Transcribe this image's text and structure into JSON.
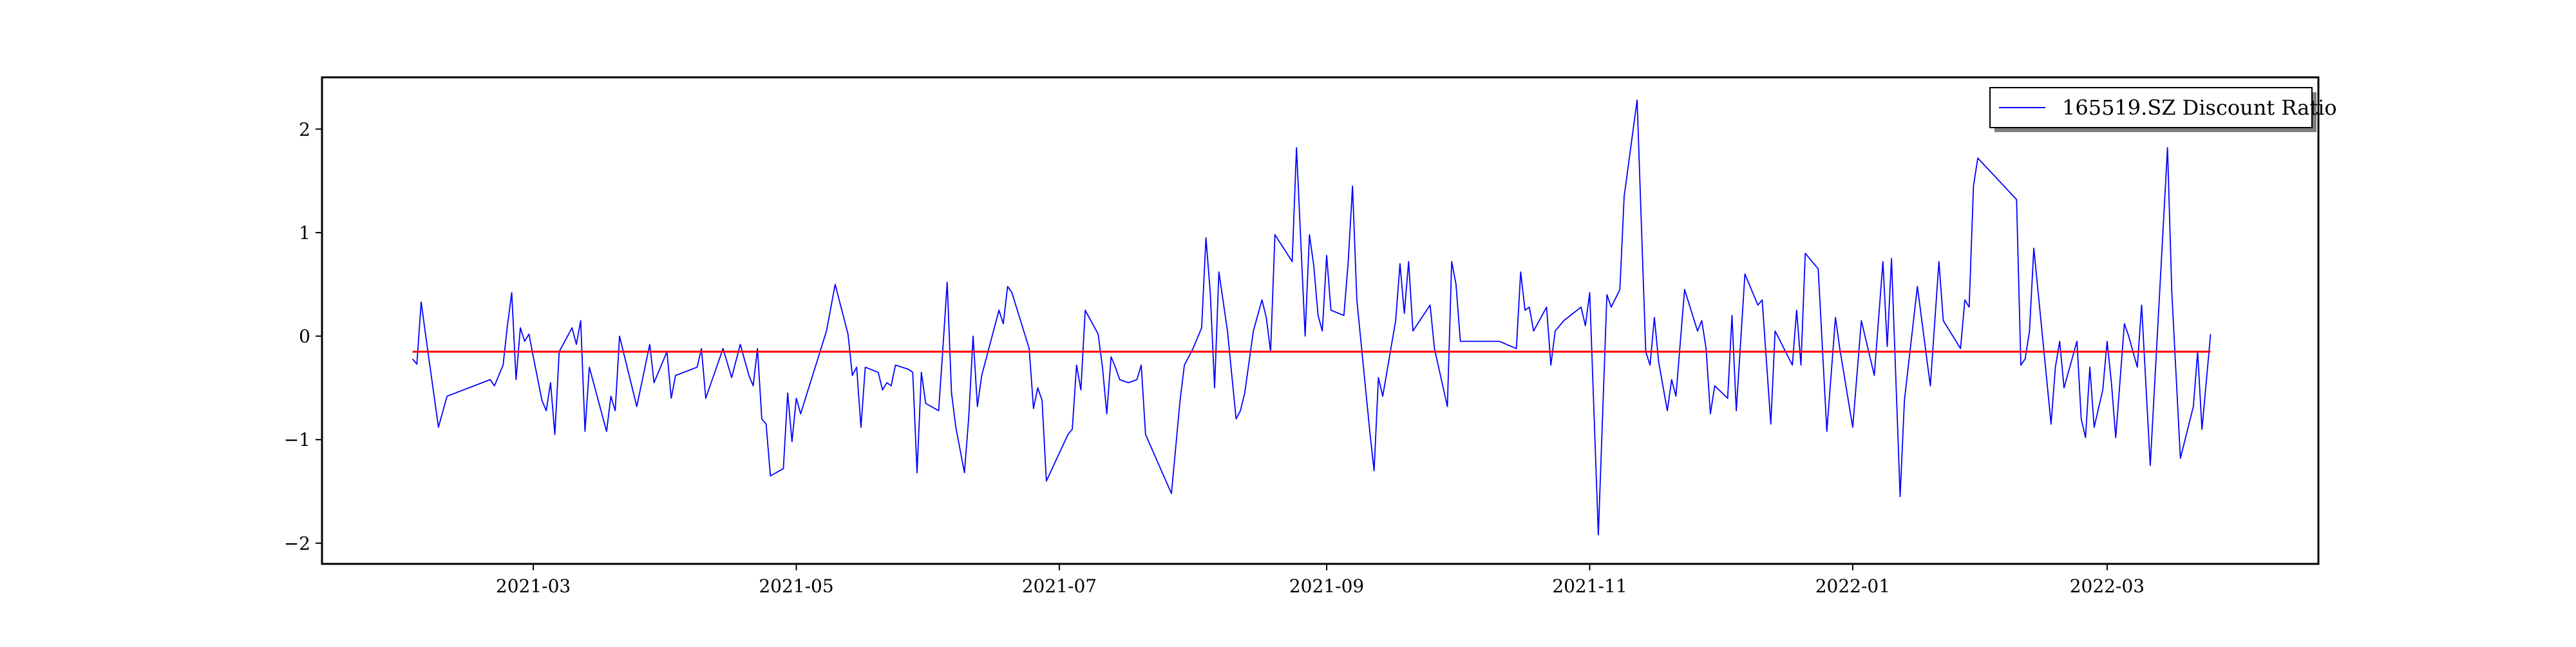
{
  "chart_data": {
    "type": "line",
    "title": "",
    "xlabel": "",
    "ylabel": "",
    "x_ticks": [
      "2021-03",
      "2021-05",
      "2021-07",
      "2021-09",
      "2021-11",
      "2022-01",
      "2022-03"
    ],
    "y_ticks": [
      "−2",
      "−1",
      "0",
      "1",
      "2"
    ],
    "xlim": [
      "2021-01-11",
      "2022-04-19"
    ],
    "ylim": [
      -2.2,
      2.5
    ],
    "grid": false,
    "legend": {
      "position": "top-right"
    },
    "reference_line": {
      "y": -0.15,
      "color": "#ff0000"
    },
    "series": [
      {
        "name": "165519.SZ Discount Ratio",
        "color": "#0000ff",
        "points": [
          [
            "2021-02-01",
            -0.22
          ],
          [
            "2021-02-02",
            -0.27
          ],
          [
            "2021-02-03",
            0.33
          ],
          [
            "2021-02-04",
            0.02
          ],
          [
            "2021-02-07",
            -0.88
          ],
          [
            "2021-02-09",
            -0.58
          ],
          [
            "2021-02-19",
            -0.42
          ],
          [
            "2021-02-20",
            -0.48
          ],
          [
            "2021-02-22",
            -0.28
          ],
          [
            "2021-02-23",
            0.1
          ],
          [
            "2021-02-24",
            0.42
          ],
          [
            "2021-02-25",
            -0.42
          ],
          [
            "2021-02-26",
            0.08
          ],
          [
            "2021-02-27",
            -0.05
          ],
          [
            "2021-02-28",
            0.02
          ],
          [
            "2021-03-01",
            -0.2
          ],
          [
            "2021-03-03",
            -0.62
          ],
          [
            "2021-03-04",
            -0.72
          ],
          [
            "2021-03-05",
            -0.45
          ],
          [
            "2021-03-06",
            -0.95
          ],
          [
            "2021-03-07",
            -0.15
          ],
          [
            "2021-03-10",
            0.08
          ],
          [
            "2021-03-11",
            -0.08
          ],
          [
            "2021-03-12",
            0.15
          ],
          [
            "2021-03-13",
            -0.92
          ],
          [
            "2021-03-14",
            -0.3
          ],
          [
            "2021-03-18",
            -0.92
          ],
          [
            "2021-03-19",
            -0.58
          ],
          [
            "2021-03-20",
            -0.72
          ],
          [
            "2021-03-21",
            0.0
          ],
          [
            "2021-03-25",
            -0.68
          ],
          [
            "2021-03-27",
            -0.28
          ],
          [
            "2021-03-28",
            -0.08
          ],
          [
            "2021-03-29",
            -0.45
          ],
          [
            "2021-04-01",
            -0.15
          ],
          [
            "2021-04-02",
            -0.6
          ],
          [
            "2021-04-03",
            -0.38
          ],
          [
            "2021-04-08",
            -0.3
          ],
          [
            "2021-04-09",
            -0.12
          ],
          [
            "2021-04-10",
            -0.6
          ],
          [
            "2021-04-14",
            -0.12
          ],
          [
            "2021-04-16",
            -0.4
          ],
          [
            "2021-04-18",
            -0.08
          ],
          [
            "2021-04-20",
            -0.38
          ],
          [
            "2021-04-21",
            -0.48
          ],
          [
            "2021-04-22",
            -0.12
          ],
          [
            "2021-04-23",
            -0.8
          ],
          [
            "2021-04-24",
            -0.85
          ],
          [
            "2021-04-25",
            -1.35
          ],
          [
            "2021-04-28",
            -1.28
          ],
          [
            "2021-04-29",
            -0.55
          ],
          [
            "2021-04-30",
            -1.02
          ],
          [
            "2021-05-01",
            -0.6
          ],
          [
            "2021-05-02",
            -0.75
          ],
          [
            "2021-05-08",
            0.05
          ],
          [
            "2021-05-10",
            0.5
          ],
          [
            "2021-05-13",
            0.02
          ],
          [
            "2021-05-14",
            -0.38
          ],
          [
            "2021-05-15",
            -0.3
          ],
          [
            "2021-05-16",
            -0.88
          ],
          [
            "2021-05-17",
            -0.3
          ],
          [
            "2021-05-20",
            -0.35
          ],
          [
            "2021-05-21",
            -0.52
          ],
          [
            "2021-05-22",
            -0.45
          ],
          [
            "2021-05-23",
            -0.48
          ],
          [
            "2021-05-24",
            -0.28
          ],
          [
            "2021-05-27",
            -0.32
          ],
          [
            "2021-05-28",
            -0.35
          ],
          [
            "2021-05-29",
            -1.32
          ],
          [
            "2021-05-30",
            -0.35
          ],
          [
            "2021-05-31",
            -0.65
          ],
          [
            "2021-06-03",
            -0.72
          ],
          [
            "2021-06-04",
            -0.12
          ],
          [
            "2021-06-05",
            0.52
          ],
          [
            "2021-06-06",
            -0.55
          ],
          [
            "2021-06-07",
            -0.88
          ],
          [
            "2021-06-09",
            -1.32
          ],
          [
            "2021-06-10",
            -0.78
          ],
          [
            "2021-06-11",
            0.0
          ],
          [
            "2021-06-12",
            -0.68
          ],
          [
            "2021-06-13",
            -0.38
          ],
          [
            "2021-06-17",
            0.25
          ],
          [
            "2021-06-18",
            0.12
          ],
          [
            "2021-06-19",
            0.48
          ],
          [
            "2021-06-20",
            0.42
          ],
          [
            "2021-06-24",
            -0.12
          ],
          [
            "2021-06-25",
            -0.7
          ],
          [
            "2021-06-26",
            -0.5
          ],
          [
            "2021-06-27",
            -0.62
          ],
          [
            "2021-06-28",
            -1.4
          ],
          [
            "2021-07-03",
            -0.95
          ],
          [
            "2021-07-04",
            -0.9
          ],
          [
            "2021-07-05",
            -0.28
          ],
          [
            "2021-07-06",
            -0.52
          ],
          [
            "2021-07-07",
            0.25
          ],
          [
            "2021-07-10",
            0.02
          ],
          [
            "2021-07-11",
            -0.3
          ],
          [
            "2021-07-12",
            -0.75
          ],
          [
            "2021-07-13",
            -0.2
          ],
          [
            "2021-07-14",
            -0.3
          ],
          [
            "2021-07-15",
            -0.42
          ],
          [
            "2021-07-17",
            -0.45
          ],
          [
            "2021-07-19",
            -0.42
          ],
          [
            "2021-07-20",
            -0.28
          ],
          [
            "2021-07-21",
            -0.95
          ],
          [
            "2021-07-27",
            -1.52
          ],
          [
            "2021-07-29",
            -0.62
          ],
          [
            "2021-07-30",
            -0.28
          ],
          [
            "2021-08-01",
            -0.12
          ],
          [
            "2021-08-03",
            0.08
          ],
          [
            "2021-08-04",
            0.95
          ],
          [
            "2021-08-05",
            0.42
          ],
          [
            "2021-08-06",
            -0.5
          ],
          [
            "2021-08-07",
            0.62
          ],
          [
            "2021-08-09",
            0.05
          ],
          [
            "2021-08-11",
            -0.8
          ],
          [
            "2021-08-12",
            -0.72
          ],
          [
            "2021-08-13",
            -0.55
          ],
          [
            "2021-08-15",
            0.05
          ],
          [
            "2021-08-17",
            0.35
          ],
          [
            "2021-08-18",
            0.18
          ],
          [
            "2021-08-19",
            -0.15
          ],
          [
            "2021-08-20",
            0.98
          ],
          [
            "2021-08-24",
            0.72
          ],
          [
            "2021-08-25",
            1.82
          ],
          [
            "2021-08-27",
            0.0
          ],
          [
            "2021-08-28",
            0.98
          ],
          [
            "2021-08-29",
            0.68
          ],
          [
            "2021-08-30",
            0.2
          ],
          [
            "2021-08-31",
            0.05
          ],
          [
            "2021-09-01",
            0.78
          ],
          [
            "2021-09-02",
            0.25
          ],
          [
            "2021-09-05",
            0.2
          ],
          [
            "2021-09-06",
            0.72
          ],
          [
            "2021-09-07",
            1.45
          ],
          [
            "2021-09-08",
            0.35
          ],
          [
            "2021-09-11",
            -0.92
          ],
          [
            "2021-09-12",
            -1.3
          ],
          [
            "2021-09-13",
            -0.4
          ],
          [
            "2021-09-14",
            -0.58
          ],
          [
            "2021-09-17",
            0.15
          ],
          [
            "2021-09-18",
            0.7
          ],
          [
            "2021-09-19",
            0.22
          ],
          [
            "2021-09-20",
            0.72
          ],
          [
            "2021-09-21",
            0.05
          ],
          [
            "2021-09-25",
            0.3
          ],
          [
            "2021-09-26",
            -0.12
          ],
          [
            "2021-09-29",
            -0.68
          ],
          [
            "2021-09-30",
            0.72
          ],
          [
            "2021-10-01",
            0.5
          ],
          [
            "2021-10-02",
            -0.05
          ],
          [
            "2021-10-11",
            -0.05
          ],
          [
            "2021-10-15",
            -0.12
          ],
          [
            "2021-10-16",
            0.62
          ],
          [
            "2021-10-17",
            0.25
          ],
          [
            "2021-10-18",
            0.28
          ],
          [
            "2021-10-19",
            0.05
          ],
          [
            "2021-10-22",
            0.28
          ],
          [
            "2021-10-23",
            -0.28
          ],
          [
            "2021-10-24",
            0.05
          ],
          [
            "2021-10-26",
            0.15
          ],
          [
            "2021-10-30",
            0.28
          ],
          [
            "2021-10-31",
            0.1
          ],
          [
            "2021-11-01",
            0.42
          ],
          [
            "2021-11-03",
            -1.92
          ],
          [
            "2021-11-05",
            0.4
          ],
          [
            "2021-11-06",
            0.28
          ],
          [
            "2021-11-08",
            0.45
          ],
          [
            "2021-11-09",
            1.35
          ],
          [
            "2021-11-12",
            2.28
          ],
          [
            "2021-11-14",
            -0.15
          ],
          [
            "2021-11-15",
            -0.28
          ],
          [
            "2021-11-16",
            0.18
          ],
          [
            "2021-11-17",
            -0.25
          ],
          [
            "2021-11-19",
            -0.72
          ],
          [
            "2021-11-20",
            -0.42
          ],
          [
            "2021-11-21",
            -0.58
          ],
          [
            "2021-11-23",
            0.45
          ],
          [
            "2021-11-26",
            0.05
          ],
          [
            "2021-11-27",
            0.15
          ],
          [
            "2021-11-28",
            -0.12
          ],
          [
            "2021-11-29",
            -0.75
          ],
          [
            "2021-11-30",
            -0.48
          ],
          [
            "2021-12-03",
            -0.6
          ],
          [
            "2021-12-04",
            0.2
          ],
          [
            "2021-12-05",
            -0.72
          ],
          [
            "2021-12-07",
            0.6
          ],
          [
            "2021-12-10",
            0.3
          ],
          [
            "2021-12-11",
            0.35
          ],
          [
            "2021-12-13",
            -0.85
          ],
          [
            "2021-12-14",
            0.05
          ],
          [
            "2021-12-18",
            -0.28
          ],
          [
            "2021-12-19",
            0.25
          ],
          [
            "2021-12-20",
            -0.28
          ],
          [
            "2021-12-21",
            0.8
          ],
          [
            "2021-12-24",
            0.65
          ],
          [
            "2021-12-26",
            -0.92
          ],
          [
            "2021-12-28",
            0.18
          ],
          [
            "2021-12-29",
            -0.12
          ],
          [
            "2022-01-01",
            -0.88
          ],
          [
            "2022-01-03",
            0.15
          ],
          [
            "2022-01-06",
            -0.38
          ],
          [
            "2022-01-08",
            0.72
          ],
          [
            "2022-01-09",
            -0.1
          ],
          [
            "2022-01-10",
            0.75
          ],
          [
            "2022-01-12",
            -1.55
          ],
          [
            "2022-01-13",
            -0.62
          ],
          [
            "2022-01-16",
            0.48
          ],
          [
            "2022-01-19",
            -0.48
          ],
          [
            "2022-01-21",
            0.72
          ],
          [
            "2022-01-22",
            0.15
          ],
          [
            "2022-01-26",
            -0.12
          ],
          [
            "2022-01-27",
            0.35
          ],
          [
            "2022-01-28",
            0.28
          ],
          [
            "2022-01-29",
            1.45
          ],
          [
            "2022-01-30",
            1.72
          ],
          [
            "2022-02-08",
            1.32
          ],
          [
            "2022-02-09",
            -0.28
          ],
          [
            "2022-02-10",
            -0.22
          ],
          [
            "2022-02-11",
            0.05
          ],
          [
            "2022-02-12",
            0.85
          ],
          [
            "2022-02-16",
            -0.85
          ],
          [
            "2022-02-17",
            -0.3
          ],
          [
            "2022-02-18",
            -0.05
          ],
          [
            "2022-02-19",
            -0.5
          ],
          [
            "2022-02-22",
            -0.05
          ],
          [
            "2022-02-23",
            -0.8
          ],
          [
            "2022-02-24",
            -0.98
          ],
          [
            "2022-02-25",
            -0.3
          ],
          [
            "2022-02-26",
            -0.88
          ],
          [
            "2022-02-28",
            -0.52
          ],
          [
            "2022-03-01",
            -0.05
          ],
          [
            "2022-03-02",
            -0.45
          ],
          [
            "2022-03-03",
            -0.98
          ],
          [
            "2022-03-05",
            0.12
          ],
          [
            "2022-03-06",
            0.0
          ],
          [
            "2022-03-08",
            -0.3
          ],
          [
            "2022-03-09",
            0.3
          ],
          [
            "2022-03-11",
            -1.25
          ],
          [
            "2022-03-15",
            1.82
          ],
          [
            "2022-03-16",
            0.42
          ],
          [
            "2022-03-18",
            -1.18
          ],
          [
            "2022-03-21",
            -0.68
          ],
          [
            "2022-03-22",
            -0.15
          ],
          [
            "2022-03-23",
            -0.9
          ],
          [
            "2022-03-25",
            0.02
          ]
        ]
      }
    ]
  }
}
